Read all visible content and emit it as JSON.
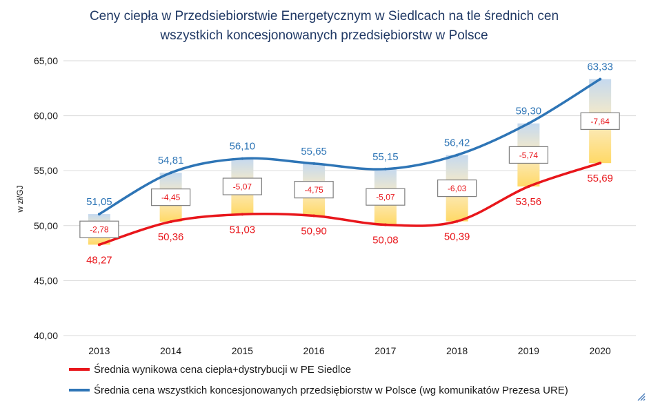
{
  "chart_data": {
    "type": "line",
    "title": "Ceny ciepła w Przedsiebiorstwie Energetycznym w Siedlcach na tle średnich cen wszystkich koncesjonowanych przedsiębiorstw w Polsce",
    "title_lines": [
      "Ceny ciepła w Przedsiebiorstwie Energetycznym w Siedlcach na tle  średnich cen",
      "wszystkich koncesjonowanych  przedsiębiorstw w Polsce"
    ],
    "ylabel": "w zł/GJ",
    "xlabel": "",
    "ylim": [
      40,
      65
    ],
    "y_ticks": [
      "40,00",
      "45,00",
      "50,00",
      "55,00",
      "60,00",
      "65,00"
    ],
    "x": [
      "2013",
      "2014",
      "2015",
      "2016",
      "2017",
      "2018",
      "2019",
      "2020"
    ],
    "grid": true,
    "legend_placement": "bottom",
    "series": [
      {
        "name": "Średnia wynikowa cena ciepła+dystrybucji w   PE Siedlce",
        "color": "#e8161b",
        "values": [
          48.27,
          50.36,
          51.03,
          50.9,
          50.08,
          50.39,
          53.56,
          55.69
        ],
        "labels": [
          "48,27",
          "50,36",
          "51,03",
          "50,90",
          "50,08",
          "50,39",
          "53,56",
          "55,69"
        ]
      },
      {
        "name": "Średnia cena wszystkich koncesjonowanych przedsiębiorstw w Polsce (wg komunikatów  Prezesa URE)",
        "color": "#2e75b6",
        "values": [
          51.05,
          54.81,
          56.1,
          55.65,
          55.15,
          56.42,
          59.3,
          63.33
        ],
        "labels": [
          "51,05",
          "54,81",
          "56,10",
          "55,65",
          "55,15",
          "56,42",
          "59,30",
          "63,33"
        ]
      }
    ],
    "differences": [
      "-2,78",
      "-4,45",
      "-5,07",
      "-4,75",
      "-5,07",
      "-6,03",
      "-5,74",
      "-7,64"
    ],
    "colors": {
      "grid": "#d9d9d9",
      "axis_text": "#1a1a1a",
      "diff_text": "#e8161b",
      "diff_border": "#7f7f7f",
      "band_top": "#c5d9ef",
      "band_bottom": "#ffd966"
    }
  }
}
